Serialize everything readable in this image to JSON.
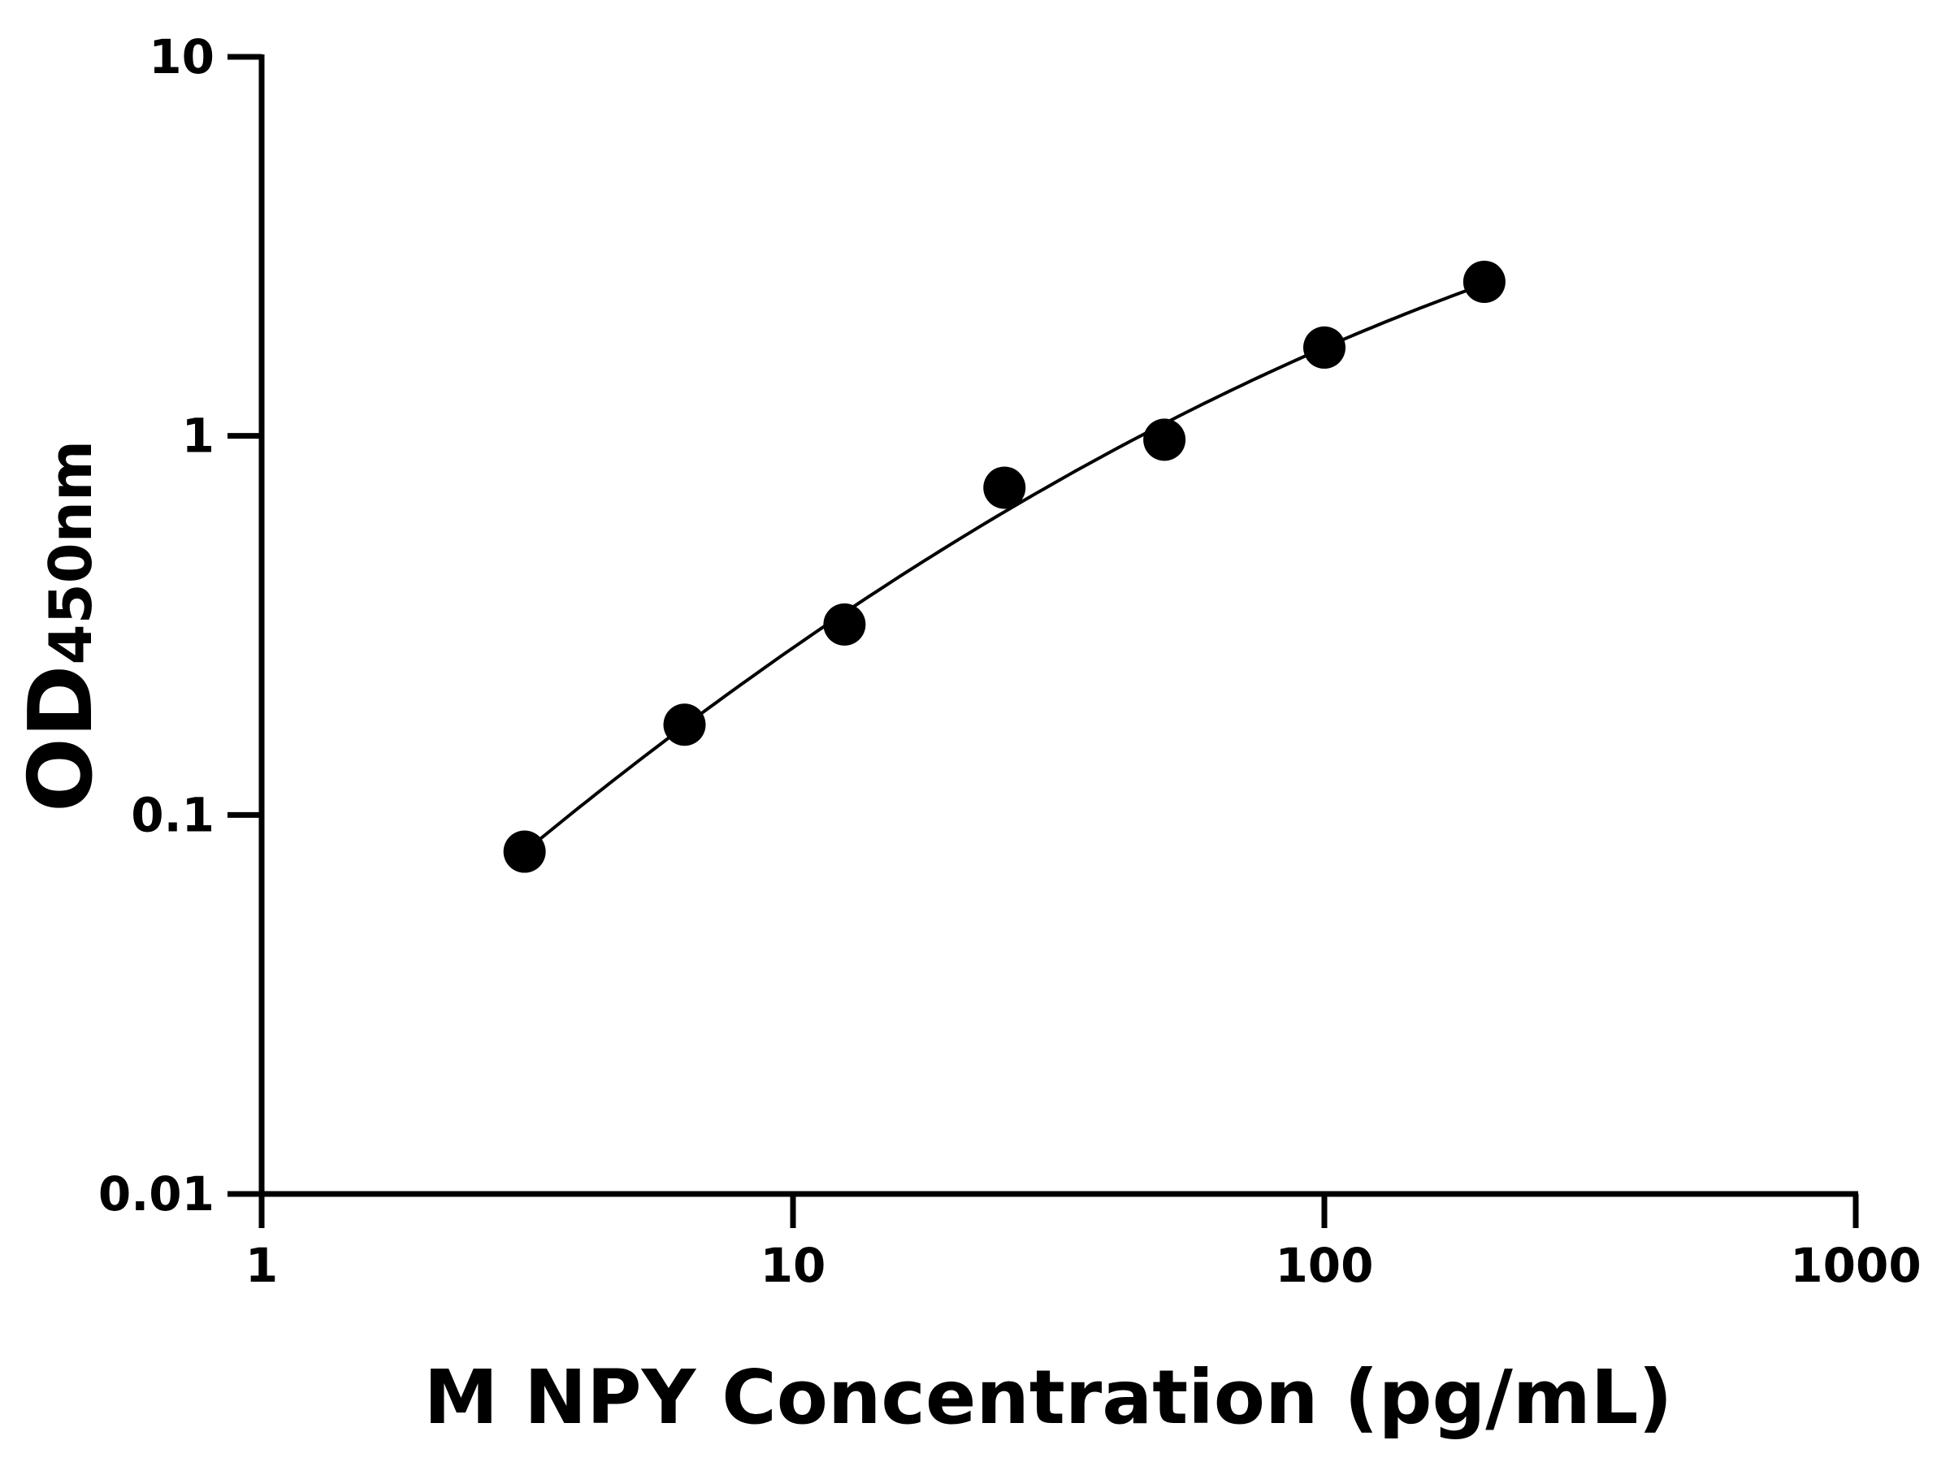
{
  "chart_data": {
    "type": "scatter",
    "title": "",
    "xlabel": "M NPY Concentration (pg/mL)",
    "ylabel_main": "OD",
    "ylabel_sub": "450nm",
    "x_scale": "log",
    "y_scale": "log",
    "xlim": [
      1,
      1000
    ],
    "ylim": [
      0.01,
      10
    ],
    "x_ticks": [
      "1",
      "10",
      "100",
      "1000"
    ],
    "y_ticks": [
      "0.01",
      "0.1",
      "1",
      "10"
    ],
    "grid": false,
    "legend": "none",
    "series": [
      {
        "x": [
          3.125,
          6.25,
          12.5,
          25,
          50,
          100,
          200
        ],
        "y": [
          0.08,
          0.173,
          0.318,
          0.73,
          0.977,
          1.71,
          2.55
        ],
        "color": "#000000",
        "fit_curve": true
      }
    ]
  }
}
